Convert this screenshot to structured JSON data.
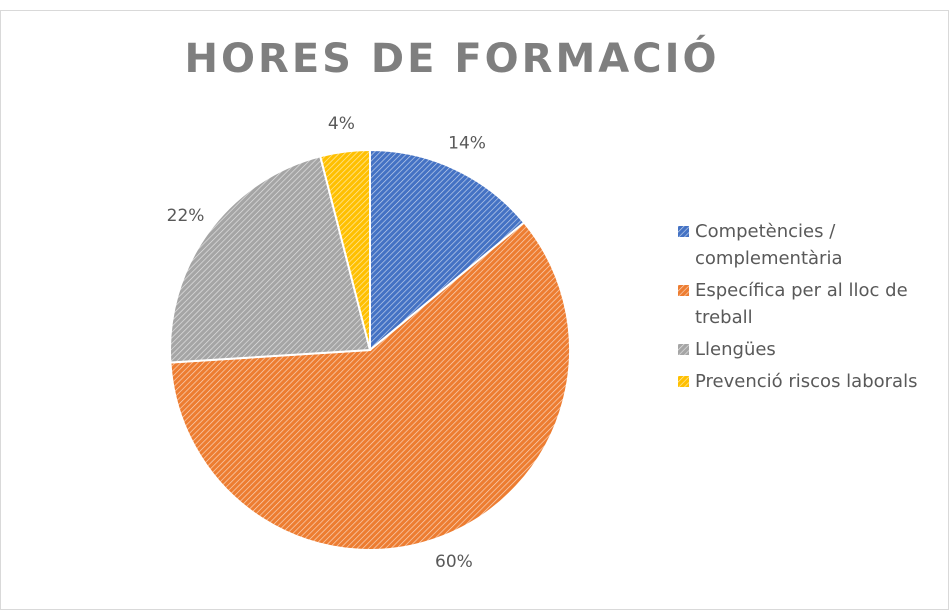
{
  "chart_data": {
    "type": "pie",
    "title": "HORES DE FORMACIÓ",
    "categories": [
      "Competències / complementària",
      "Específica per al lloc de treball",
      "Llengües",
      "Prevenció riscos laborals"
    ],
    "values": [
      14,
      60,
      22,
      4
    ],
    "value_labels": [
      "14%",
      "60%",
      "22%",
      "4%"
    ],
    "colors": [
      "#4472c4",
      "#ed7d31",
      "#a5a5a5",
      "#ffc000"
    ],
    "legend": "right"
  }
}
